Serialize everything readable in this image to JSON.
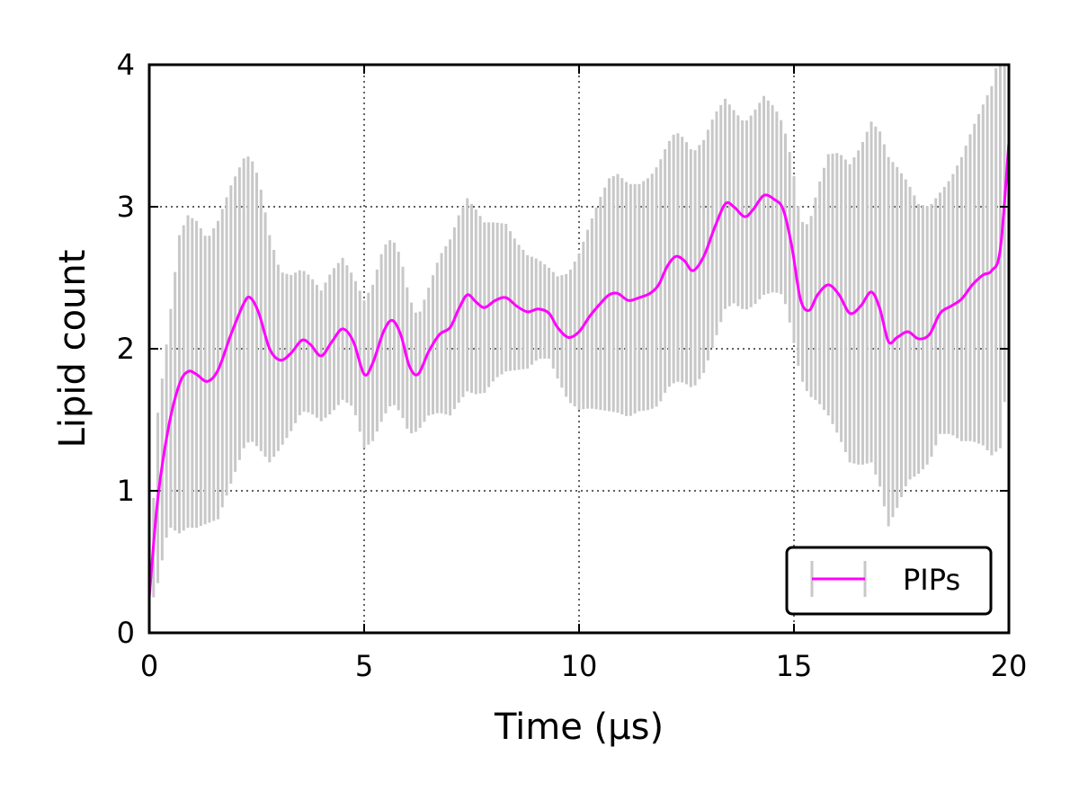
{
  "chart_data": {
    "type": "line",
    "xlabel": "Time (μs)",
    "ylabel": "Lipid count",
    "xlim": [
      0,
      20
    ],
    "ylim": [
      0,
      4
    ],
    "x_ticks": [
      0,
      5,
      10,
      15,
      20
    ],
    "y_ticks": [
      0,
      1,
      2,
      3,
      4
    ],
    "x_tick_labels": [
      "0",
      "5",
      "10",
      "15",
      "20"
    ],
    "y_tick_labels": [
      "0",
      "1",
      "2",
      "3",
      "4"
    ],
    "grid": "dotted",
    "legend_position": "lower-right",
    "series": [
      {
        "name": "PIPs",
        "color": "#ff00ff",
        "errorbar_color": "#c8c8c8",
        "x": [
          0.0,
          0.2,
          0.45,
          0.7,
          0.9,
          1.1,
          1.35,
          1.6,
          1.9,
          2.2,
          2.35,
          2.55,
          2.8,
          3.05,
          3.3,
          3.55,
          3.75,
          4.0,
          4.25,
          4.5,
          4.75,
          5.0,
          5.2,
          5.45,
          5.65,
          5.85,
          6.05,
          6.25,
          6.5,
          6.75,
          7.0,
          7.2,
          7.4,
          7.6,
          7.8,
          8.05,
          8.3,
          8.55,
          8.8,
          9.05,
          9.3,
          9.5,
          9.75,
          10.0,
          10.25,
          10.5,
          10.7,
          10.9,
          11.15,
          11.4,
          11.65,
          11.85,
          12.05,
          12.25,
          12.45,
          12.65,
          12.9,
          13.15,
          13.4,
          13.6,
          13.85,
          14.05,
          14.3,
          14.55,
          14.75,
          14.95,
          15.15,
          15.35,
          15.55,
          15.8,
          16.05,
          16.3,
          16.55,
          16.8,
          17.0,
          17.2,
          17.4,
          17.65,
          17.9,
          18.15,
          18.4,
          18.65,
          18.9,
          19.15,
          19.4,
          19.6,
          19.8,
          20.0
        ],
        "y": [
          0.25,
          0.95,
          1.45,
          1.75,
          1.84,
          1.82,
          1.77,
          1.85,
          2.1,
          2.32,
          2.36,
          2.25,
          2.0,
          1.92,
          1.97,
          2.06,
          2.03,
          1.95,
          2.05,
          2.14,
          2.05,
          1.82,
          1.9,
          2.12,
          2.2,
          2.1,
          1.88,
          1.82,
          1.98,
          2.1,
          2.15,
          2.28,
          2.38,
          2.33,
          2.29,
          2.34,
          2.36,
          2.3,
          2.26,
          2.28,
          2.25,
          2.15,
          2.08,
          2.12,
          2.23,
          2.32,
          2.38,
          2.39,
          2.34,
          2.36,
          2.39,
          2.45,
          2.58,
          2.65,
          2.62,
          2.55,
          2.65,
          2.85,
          3.02,
          3.0,
          2.93,
          2.98,
          3.08,
          3.05,
          2.98,
          2.72,
          2.35,
          2.27,
          2.38,
          2.45,
          2.38,
          2.25,
          2.3,
          2.4,
          2.28,
          2.05,
          2.08,
          2.12,
          2.07,
          2.1,
          2.25,
          2.3,
          2.35,
          2.45,
          2.52,
          2.55,
          2.7,
          3.45
        ],
        "error": [
          0.1,
          0.6,
          0.7,
          1.05,
          1.1,
          1.08,
          1.0,
          1.05,
          1.05,
          1.02,
          1.0,
          0.95,
          0.8,
          0.62,
          0.55,
          0.5,
          0.48,
          0.46,
          0.5,
          0.5,
          0.46,
          0.52,
          0.55,
          0.6,
          0.58,
          0.55,
          0.48,
          0.4,
          0.45,
          0.55,
          0.62,
          0.66,
          0.68,
          0.65,
          0.6,
          0.55,
          0.52,
          0.45,
          0.4,
          0.35,
          0.32,
          0.36,
          0.45,
          0.55,
          0.65,
          0.75,
          0.82,
          0.84,
          0.82,
          0.8,
          0.82,
          0.85,
          0.86,
          0.88,
          0.86,
          0.83,
          0.82,
          0.8,
          0.74,
          0.68,
          0.66,
          0.68,
          0.7,
          0.65,
          0.6,
          0.6,
          0.55,
          0.6,
          0.75,
          0.92,
          1.0,
          1.05,
          1.12,
          1.2,
          1.25,
          1.3,
          1.2,
          1.05,
          0.95,
          0.9,
          0.85,
          0.9,
          1.0,
          1.1,
          1.2,
          1.3,
          1.4,
          1.5
        ]
      }
    ]
  }
}
